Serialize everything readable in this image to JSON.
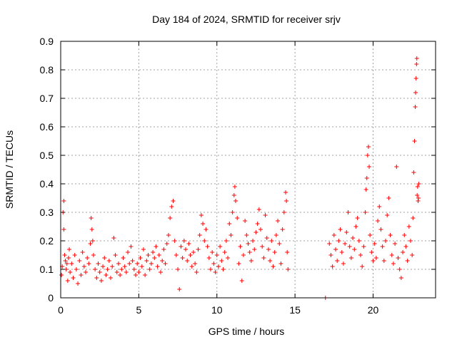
{
  "chart_data": {
    "type": "scatter",
    "title": "Day 184 of 2024, SRMTID for receiver srjv",
    "xlabel": "GPS time / hours",
    "ylabel": "SRMTID / TECUs",
    "xlim": [
      0,
      24
    ],
    "ylim": [
      0,
      0.9
    ],
    "xticks": [
      0,
      5,
      10,
      15,
      20
    ],
    "xtick_labels": [
      "0",
      "5",
      "10",
      "15",
      "20"
    ],
    "yticks": [
      0,
      0.1,
      0.2,
      0.3,
      0.4,
      0.5,
      0.6,
      0.7,
      0.8,
      0.9
    ],
    "ytick_labels": [
      "0",
      "0.1",
      "0.2",
      "0.3",
      "0.4",
      "0.5",
      "0.6",
      "0.7",
      "0.8",
      "0.9"
    ],
    "grid": true,
    "marker": "plus",
    "color": "#ff0000",
    "series": [
      {
        "name": "SRMTID",
        "points": [
          [
            0.05,
            0.08
          ],
          [
            0.1,
            0.11
          ],
          [
            0.15,
            0.3
          ],
          [
            0.2,
            0.34
          ],
          [
            0.2,
            0.24
          ],
          [
            0.25,
            0.15
          ],
          [
            0.3,
            0.13
          ],
          [
            0.35,
            0.1
          ],
          [
            0.4,
            0.12
          ],
          [
            0.45,
            0.06
          ],
          [
            0.5,
            0.14
          ],
          [
            0.55,
            0.17
          ],
          [
            0.6,
            0.09
          ],
          [
            0.7,
            0.12
          ],
          [
            0.8,
            0.07
          ],
          [
            0.9,
            0.15
          ],
          [
            1.0,
            0.1
          ],
          [
            1.1,
            0.05
          ],
          [
            1.2,
            0.13
          ],
          [
            1.3,
            0.08
          ],
          [
            1.4,
            0.16
          ],
          [
            1.5,
            0.11
          ],
          [
            1.6,
            0.09
          ],
          [
            1.7,
            0.14
          ],
          [
            1.8,
            0.12
          ],
          [
            1.9,
            0.19
          ],
          [
            1.95,
            0.28
          ],
          [
            2.0,
            0.24
          ],
          [
            2.05,
            0.2
          ],
          [
            2.1,
            0.15
          ],
          [
            2.2,
            0.1
          ],
          [
            2.3,
            0.07
          ],
          [
            2.4,
            0.12
          ],
          [
            2.5,
            0.09
          ],
          [
            2.6,
            0.06
          ],
          [
            2.7,
            0.11
          ],
          [
            2.8,
            0.14
          ],
          [
            2.9,
            0.08
          ],
          [
            3.0,
            0.1
          ],
          [
            3.1,
            0.13
          ],
          [
            3.2,
            0.07
          ],
          [
            3.3,
            0.11
          ],
          [
            3.4,
            0.21
          ],
          [
            3.5,
            0.15
          ],
          [
            3.6,
            0.09
          ],
          [
            3.7,
            0.12
          ],
          [
            3.8,
            0.08
          ],
          [
            3.9,
            0.1
          ],
          [
            4.0,
            0.14
          ],
          [
            4.1,
            0.11
          ],
          [
            4.2,
            0.09
          ],
          [
            4.3,
            0.16
          ],
          [
            4.4,
            0.12
          ],
          [
            4.5,
            0.18
          ],
          [
            4.6,
            0.13
          ],
          [
            4.7,
            0.1
          ],
          [
            4.8,
            0.08
          ],
          [
            4.9,
            0.12
          ],
          [
            5.0,
            0.09
          ],
          [
            5.1,
            0.14
          ],
          [
            5.2,
            0.11
          ],
          [
            5.3,
            0.17
          ],
          [
            5.4,
            0.08
          ],
          [
            5.5,
            0.13
          ],
          [
            5.6,
            0.15
          ],
          [
            5.7,
            0.1
          ],
          [
            5.8,
            0.12
          ],
          [
            5.9,
            0.16
          ],
          [
            6.0,
            0.14
          ],
          [
            6.1,
            0.18
          ],
          [
            6.2,
            0.11
          ],
          [
            6.3,
            0.15
          ],
          [
            6.4,
            0.09
          ],
          [
            6.5,
            0.13
          ],
          [
            6.6,
            0.17
          ],
          [
            6.7,
            0.12
          ],
          [
            6.8,
            0.19
          ],
          [
            6.9,
            0.22
          ],
          [
            7.0,
            0.28
          ],
          [
            7.1,
            0.32
          ],
          [
            7.2,
            0.34
          ],
          [
            7.3,
            0.2
          ],
          [
            7.4,
            0.15
          ],
          [
            7.5,
            0.1
          ],
          [
            7.6,
            0.03
          ],
          [
            7.7,
            0.18
          ],
          [
            7.8,
            0.14
          ],
          [
            7.9,
            0.2
          ],
          [
            8.0,
            0.17
          ],
          [
            8.1,
            0.13
          ],
          [
            8.2,
            0.19
          ],
          [
            8.3,
            0.15
          ],
          [
            8.4,
            0.11
          ],
          [
            8.5,
            0.16
          ],
          [
            8.6,
            0.12
          ],
          [
            8.7,
            0.09
          ],
          [
            8.8,
            0.17
          ],
          [
            8.9,
            0.22
          ],
          [
            9.0,
            0.29
          ],
          [
            9.1,
            0.26
          ],
          [
            9.2,
            0.2
          ],
          [
            9.3,
            0.24
          ],
          [
            9.4,
            0.18
          ],
          [
            9.5,
            0.14
          ],
          [
            9.6,
            0.1
          ],
          [
            9.7,
            0.16
          ],
          [
            9.8,
            0.12
          ],
          [
            9.9,
            0.09
          ],
          [
            10.0,
            0.15
          ],
          [
            10.1,
            0.11
          ],
          [
            10.2,
            0.18
          ],
          [
            10.3,
            0.13
          ],
          [
            10.4,
            0.1
          ],
          [
            10.5,
            0.16
          ],
          [
            10.6,
            0.2
          ],
          [
            10.7,
            0.14
          ],
          [
            10.8,
            0.26
          ],
          [
            10.9,
            0.22
          ],
          [
            11.0,
            0.3
          ],
          [
            11.1,
            0.36
          ],
          [
            11.15,
            0.39
          ],
          [
            11.2,
            0.34
          ],
          [
            11.3,
            0.28
          ],
          [
            11.4,
            0.12
          ],
          [
            11.5,
            0.18
          ],
          [
            11.6,
            0.06
          ],
          [
            11.7,
            0.15
          ],
          [
            11.8,
            0.27
          ],
          [
            11.9,
            0.22
          ],
          [
            12.0,
            0.19
          ],
          [
            12.1,
            0.16
          ],
          [
            12.2,
            0.13
          ],
          [
            12.3,
            0.2
          ],
          [
            12.4,
            0.17
          ],
          [
            12.5,
            0.23
          ],
          [
            12.6,
            0.26
          ],
          [
            12.7,
            0.31
          ],
          [
            12.8,
            0.24
          ],
          [
            12.9,
            0.18
          ],
          [
            13.0,
            0.14
          ],
          [
            13.1,
            0.29
          ],
          [
            13.2,
            0.21
          ],
          [
            13.3,
            0.17
          ],
          [
            13.4,
            0.13
          ],
          [
            13.5,
            0.2
          ],
          [
            13.6,
            0.11
          ],
          [
            13.7,
            0.16
          ],
          [
            13.8,
            0.22
          ],
          [
            13.9,
            0.27
          ],
          [
            14.0,
            0.19
          ],
          [
            14.1,
            0.12
          ],
          [
            14.2,
            0.24
          ],
          [
            14.3,
            0.3
          ],
          [
            14.4,
            0.37
          ],
          [
            14.45,
            0.34
          ],
          [
            14.5,
            0.16
          ],
          [
            14.55,
            0.1
          ],
          [
            16.95,
            0.0
          ],
          [
            17.2,
            0.19
          ],
          [
            17.3,
            0.15
          ],
          [
            17.4,
            0.11
          ],
          [
            17.5,
            0.22
          ],
          [
            17.6,
            0.17
          ],
          [
            17.7,
            0.13
          ],
          [
            17.8,
            0.2
          ],
          [
            17.9,
            0.24
          ],
          [
            18.0,
            0.16
          ],
          [
            18.1,
            0.12
          ],
          [
            18.2,
            0.19
          ],
          [
            18.3,
            0.23
          ],
          [
            18.4,
            0.3
          ],
          [
            18.5,
            0.18
          ],
          [
            18.6,
            0.14
          ],
          [
            18.7,
            0.21
          ],
          [
            18.8,
            0.17
          ],
          [
            18.9,
            0.25
          ],
          [
            19.0,
            0.28
          ],
          [
            19.1,
            0.2
          ],
          [
            19.2,
            0.15
          ],
          [
            19.3,
            0.11
          ],
          [
            19.4,
            0.18
          ],
          [
            19.5,
            0.3
          ],
          [
            19.55,
            0.38
          ],
          [
            19.6,
            0.42
          ],
          [
            19.65,
            0.5
          ],
          [
            19.7,
            0.53
          ],
          [
            19.75,
            0.46
          ],
          [
            19.8,
            0.22
          ],
          [
            19.9,
            0.16
          ],
          [
            20.0,
            0.13
          ],
          [
            20.1,
            0.19
          ],
          [
            20.2,
            0.14
          ],
          [
            20.3,
            0.27
          ],
          [
            20.4,
            0.32
          ],
          [
            20.5,
            0.24
          ],
          [
            20.6,
            0.18
          ],
          [
            20.7,
            0.13
          ],
          [
            20.8,
            0.2
          ],
          [
            20.9,
            0.29
          ],
          [
            21.0,
            0.35
          ],
          [
            21.1,
            0.22
          ],
          [
            21.2,
            0.15
          ],
          [
            21.3,
            0.12
          ],
          [
            21.4,
            0.19
          ],
          [
            21.5,
            0.46
          ],
          [
            21.6,
            0.14
          ],
          [
            21.7,
            0.1
          ],
          [
            21.8,
            0.07
          ],
          [
            21.9,
            0.16
          ],
          [
            22.0,
            0.22
          ],
          [
            22.1,
            0.18
          ],
          [
            22.2,
            0.13
          ],
          [
            22.3,
            0.25
          ],
          [
            22.4,
            0.2
          ],
          [
            22.5,
            0.15
          ],
          [
            22.55,
            0.28
          ],
          [
            22.6,
            0.44
          ],
          [
            22.65,
            0.55
          ],
          [
            22.7,
            0.67
          ],
          [
            22.72,
            0.72
          ],
          [
            22.75,
            0.77
          ],
          [
            22.78,
            0.82
          ],
          [
            22.8,
            0.84
          ],
          [
            22.82,
            0.36
          ],
          [
            22.85,
            0.39
          ],
          [
            22.88,
            0.34
          ],
          [
            22.9,
            0.35
          ],
          [
            22.92,
            0.4
          ]
        ]
      }
    ]
  }
}
